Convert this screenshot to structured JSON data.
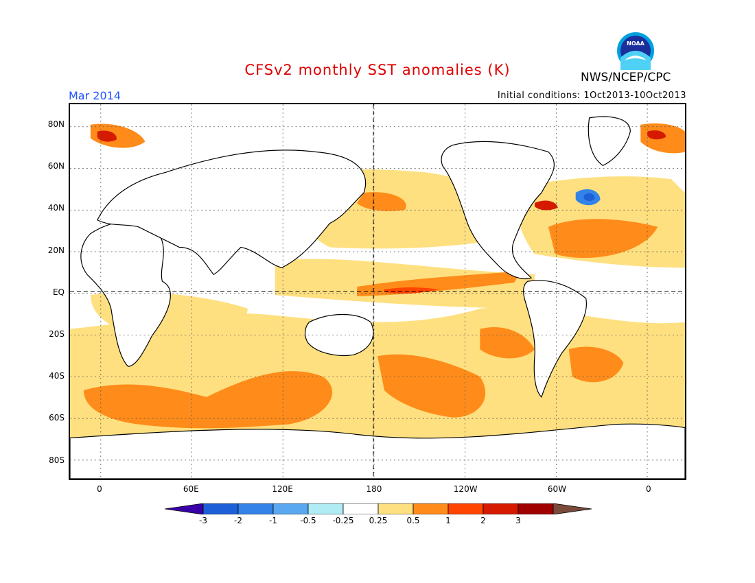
{
  "header": {
    "title": "CFSv2 monthly SST anomalies (K)",
    "agency": "NWS/NCEP/CPC",
    "valid_month": "Mar 2014",
    "initial_conditions": "Initial conditions: 1Oct2013-10Oct2013",
    "logo_text": "NOAA"
  },
  "map": {
    "projection": "cylindrical equidistant",
    "lon_range": [
      -20,
      380
    ],
    "lat_range": [
      -90,
      90
    ],
    "grid": "dashed, 30 degree spacing",
    "latitude_labels": [
      "80N",
      "60N",
      "40N",
      "20N",
      "EQ",
      "20S",
      "40S",
      "60S",
      "80S"
    ],
    "longitude_labels": [
      "0",
      "60E",
      "120E",
      "180",
      "120W",
      "60W",
      "0"
    ]
  },
  "colorbar": {
    "tick_labels": [
      "-3",
      "-2",
      "-1",
      "-0.5",
      "-0.25",
      "0.25",
      "0.5",
      "1",
      "2",
      "3"
    ],
    "colors": [
      "#3a00a8",
      "#1c5fd6",
      "#3383e8",
      "#5aa8f0",
      "#b0ecf4",
      "#ffffff",
      "#ffe080",
      "#ff8c1a",
      "#ff4500",
      "#d61a00",
      "#a00000",
      "#7a4a3a"
    ]
  }
}
